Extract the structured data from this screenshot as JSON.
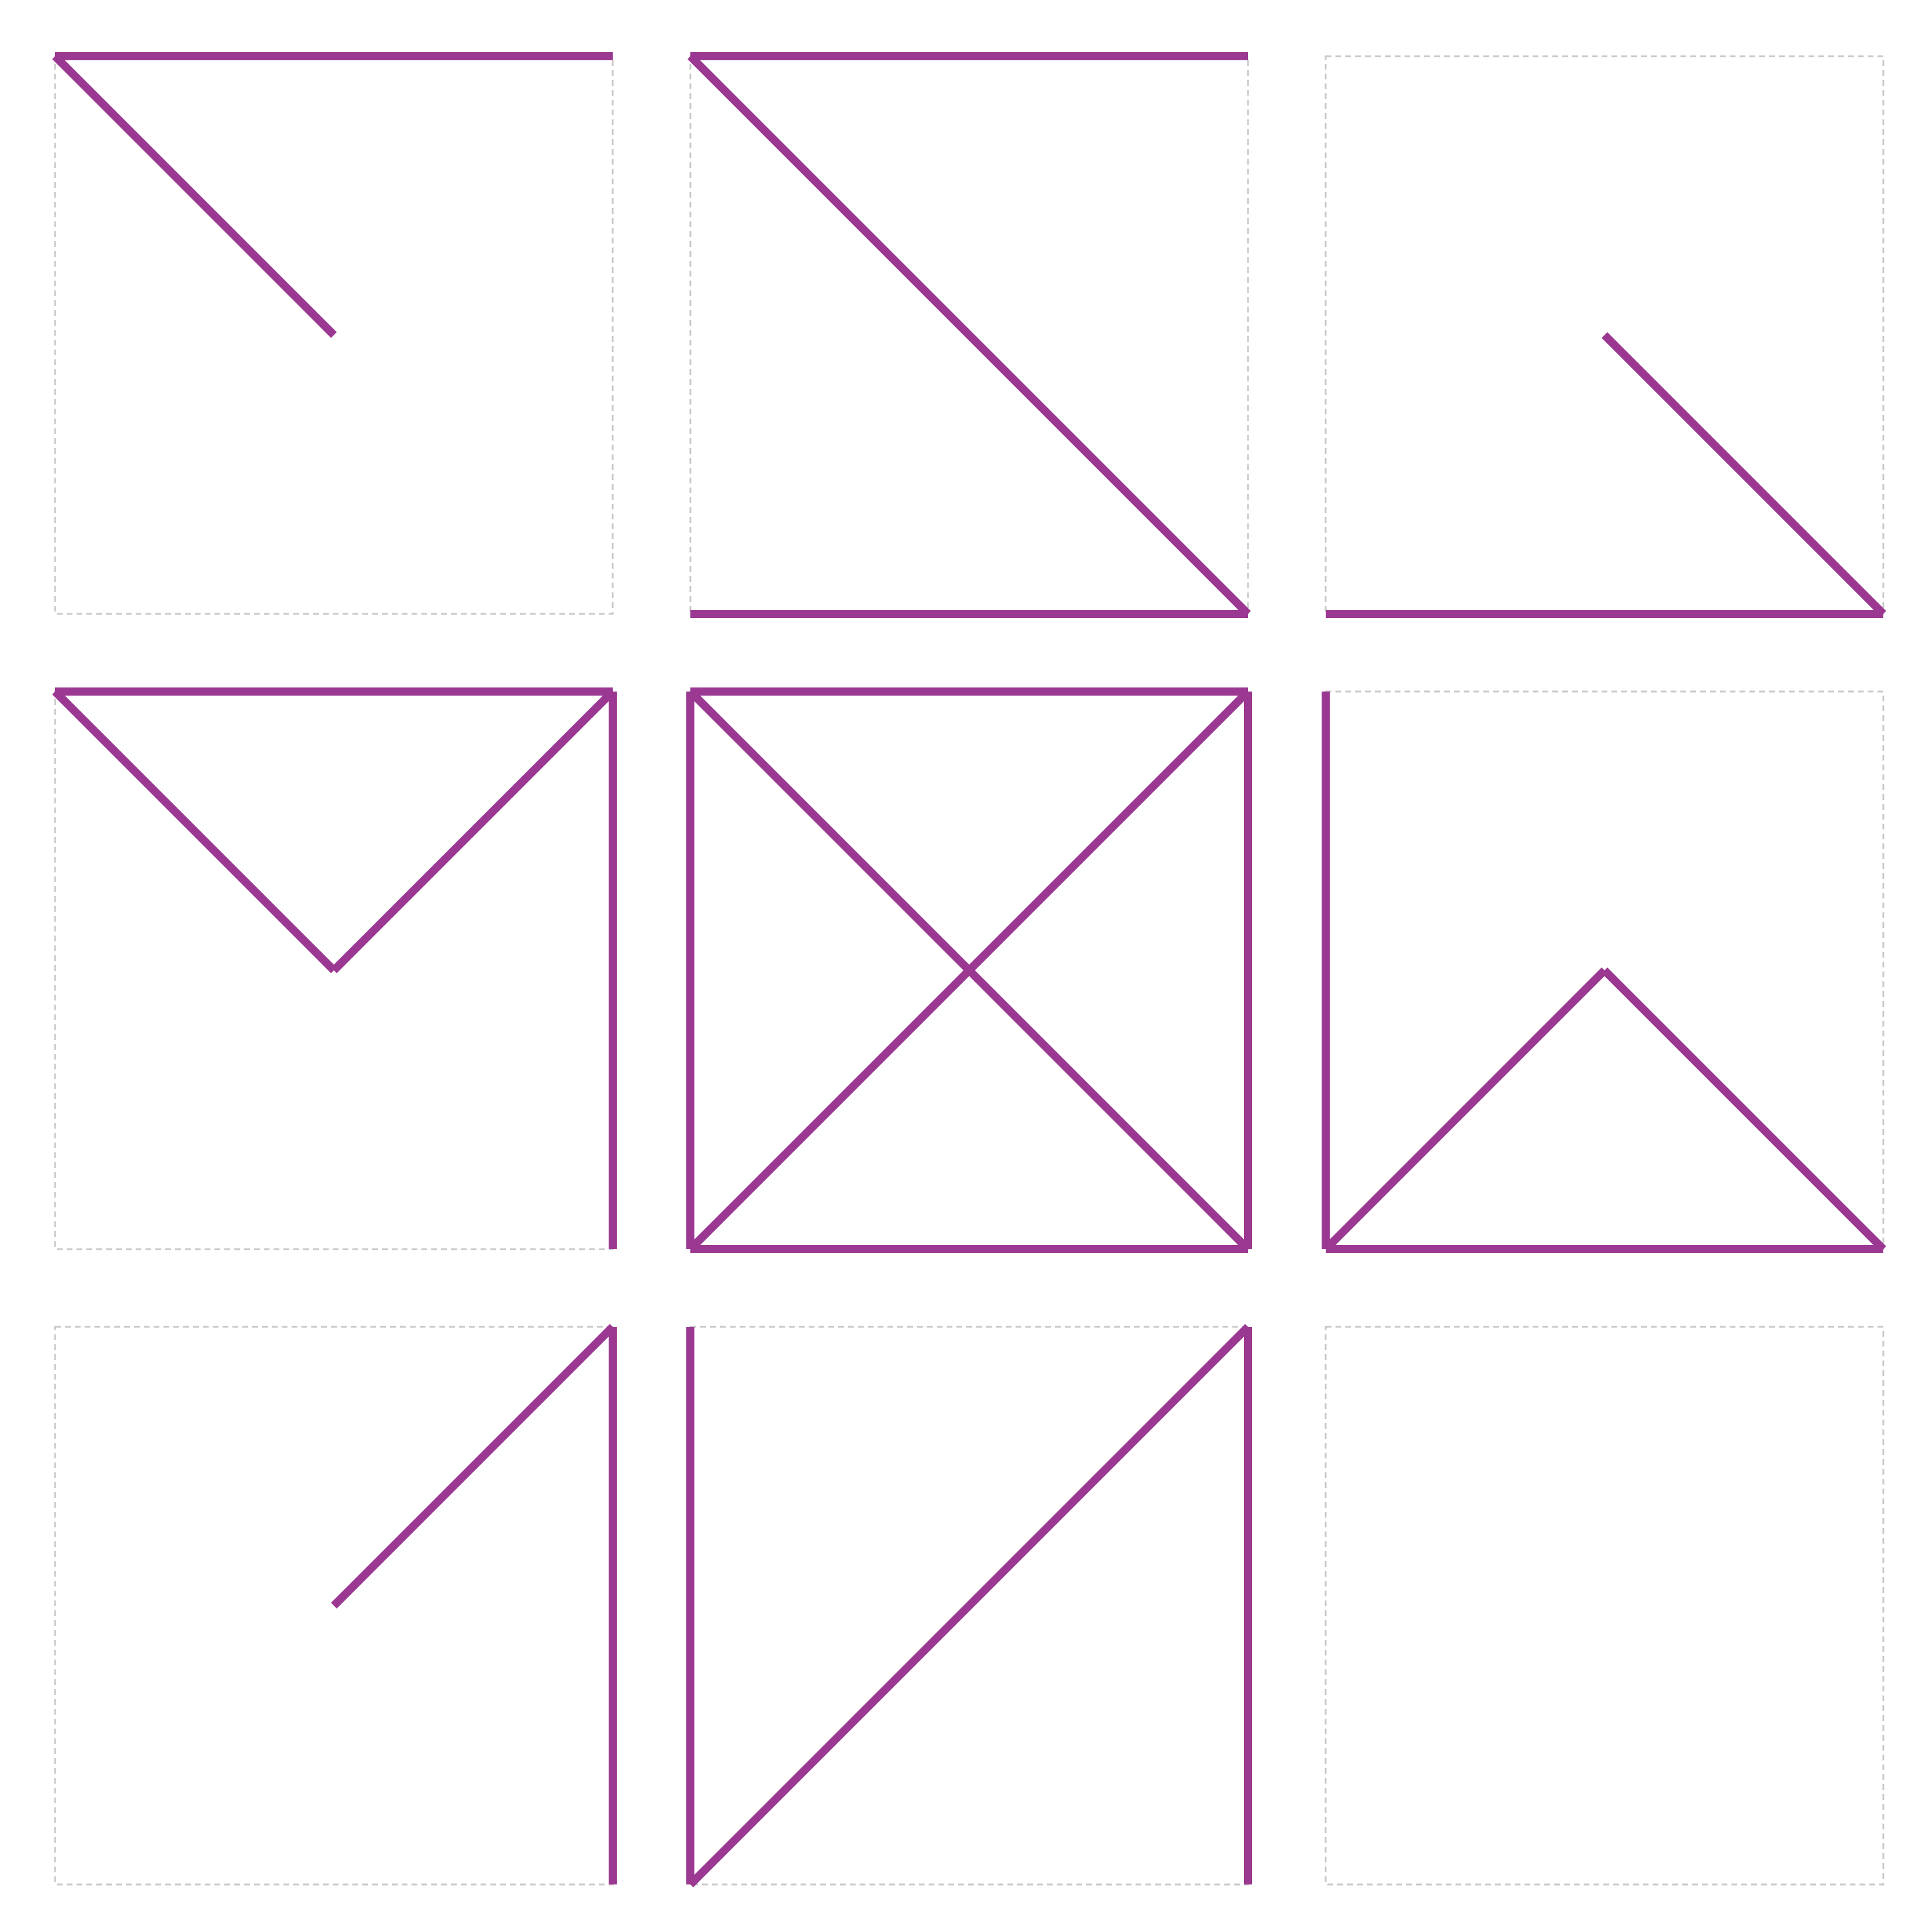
{
  "colors": {
    "stroke": "#9b3892",
    "frame_border": "#c8c8c8",
    "background": "#ffffff"
  },
  "grid": {
    "rows": 3,
    "columns": 3
  },
  "tiles": [
    {
      "row": 1,
      "column": 1,
      "segments": [
        "top",
        "diag-top-left-to-center"
      ]
    },
    {
      "row": 1,
      "column": 2,
      "segments": [
        "top",
        "diag-top-left-to-bottom-right",
        "bottom"
      ]
    },
    {
      "row": 1,
      "column": 3,
      "segments": [
        "diag-center-to-bottom-right",
        "bottom"
      ]
    },
    {
      "row": 2,
      "column": 1,
      "segments": [
        "top",
        "diag-top-left-to-center",
        "diag-top-right-to-center",
        "right"
      ]
    },
    {
      "row": 2,
      "column": 2,
      "segments": [
        "top",
        "right",
        "bottom",
        "left",
        "diag-top-left-to-bottom-right",
        "diag-top-right-to-bottom-left"
      ]
    },
    {
      "row": 2,
      "column": 3,
      "segments": [
        "left",
        "diag-bottom-left-to-center",
        "diag-center-to-bottom-right",
        "bottom"
      ]
    },
    {
      "row": 3,
      "column": 1,
      "segments": [
        "diag-center-to-top-right",
        "right"
      ]
    },
    {
      "row": 3,
      "column": 2,
      "segments": [
        "left",
        "diag-bottom-left-to-top-right",
        "right"
      ]
    },
    {
      "row": 3,
      "column": 3,
      "segments": []
    }
  ]
}
